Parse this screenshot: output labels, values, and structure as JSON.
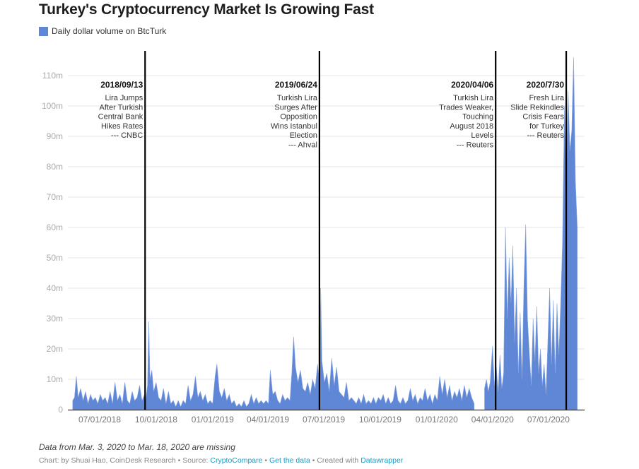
{
  "title": "Turkey's Cryptocurrency Market Is Growing Fast",
  "legend": {
    "label": "Daily dollar volume on BtcTurk",
    "color": "#5f87d6"
  },
  "note": "Data from Mar. 3, 2020 to Mar. 18, 2020 are missing",
  "footer": {
    "prefix": "Chart: by Shuai Hao, CoinDesk Research • Source: ",
    "source_link": "CryptoCompare",
    "sep1": " • ",
    "data_link": "Get the data",
    "sep2": " • Created with ",
    "tool_link": "Datawrapper"
  },
  "chart_data": {
    "type": "area",
    "title": "Turkey's Cryptocurrency Market Is Growing Fast",
    "xlabel": "",
    "ylabel": "",
    "unit": "USD millions",
    "ylim": [
      0,
      110
    ],
    "grid": true,
    "legend_position": "top-left",
    "y_ticks": [
      {
        "value": 0,
        "label": "0"
      },
      {
        "value": 10,
        "label": "10m"
      },
      {
        "value": 20,
        "label": "20m"
      },
      {
        "value": 30,
        "label": "30m"
      },
      {
        "value": 40,
        "label": "40m"
      },
      {
        "value": 50,
        "label": "50m"
      },
      {
        "value": 60,
        "label": "60m"
      },
      {
        "value": 70,
        "label": "70m"
      },
      {
        "value": 80,
        "label": "80m"
      },
      {
        "value": 90,
        "label": "90m"
      },
      {
        "value": 100,
        "label": "100m"
      },
      {
        "value": 110,
        "label": "110m"
      }
    ],
    "x_range": [
      "2018-05-18",
      "2020-08-17"
    ],
    "x_ticks": [
      {
        "date": "2018-07-01",
        "label": "07/01/2018"
      },
      {
        "date": "2018-10-01",
        "label": "10/01/2018"
      },
      {
        "date": "2019-01-01",
        "label": "01/01/2019"
      },
      {
        "date": "2019-04-01",
        "label": "04/01/2019"
      },
      {
        "date": "2019-07-01",
        "label": "07/01/2019"
      },
      {
        "date": "2019-10-01",
        "label": "10/01/2019"
      },
      {
        "date": "2020-01-01",
        "label": "01/01/2020"
      },
      {
        "date": "2020-04-01",
        "label": "04/01/2020"
      },
      {
        "date": "2020-07-01",
        "label": "07/01/2020"
      }
    ],
    "missing_range": [
      "2020-03-03",
      "2020-03-18"
    ],
    "series": [
      {
        "name": "Daily dollar volume on BtcTurk",
        "points": [
          [
            "2018-05-18",
            3
          ],
          [
            "2018-05-21",
            4
          ],
          [
            "2018-05-24",
            11
          ],
          [
            "2018-05-27",
            4
          ],
          [
            "2018-05-31",
            7
          ],
          [
            "2018-06-04",
            3
          ],
          [
            "2018-06-08",
            6
          ],
          [
            "2018-06-12",
            2
          ],
          [
            "2018-06-16",
            5
          ],
          [
            "2018-06-20",
            3
          ],
          [
            "2018-06-24",
            4
          ],
          [
            "2018-06-28",
            2
          ],
          [
            "2018-07-02",
            5
          ],
          [
            "2018-07-06",
            3
          ],
          [
            "2018-07-10",
            4
          ],
          [
            "2018-07-14",
            2
          ],
          [
            "2018-07-18",
            6
          ],
          [
            "2018-07-22",
            2
          ],
          [
            "2018-07-26",
            9
          ],
          [
            "2018-07-30",
            3
          ],
          [
            "2018-08-03",
            5
          ],
          [
            "2018-08-07",
            2
          ],
          [
            "2018-08-11",
            9
          ],
          [
            "2018-08-15",
            3
          ],
          [
            "2018-08-19",
            2
          ],
          [
            "2018-08-23",
            6
          ],
          [
            "2018-08-27",
            3
          ],
          [
            "2018-08-31",
            4
          ],
          [
            "2018-09-04",
            8
          ],
          [
            "2018-09-08",
            3
          ],
          [
            "2018-09-12",
            5
          ],
          [
            "2018-09-14",
            3
          ],
          [
            "2018-09-17",
            8
          ],
          [
            "2018-09-19",
            29
          ],
          [
            "2018-09-21",
            10
          ],
          [
            "2018-09-24",
            13
          ],
          [
            "2018-09-27",
            6
          ],
          [
            "2018-10-01",
            9
          ],
          [
            "2018-10-05",
            4
          ],
          [
            "2018-10-09",
            3
          ],
          [
            "2018-10-13",
            7
          ],
          [
            "2018-10-17",
            2
          ],
          [
            "2018-10-21",
            6
          ],
          [
            "2018-10-25",
            2
          ],
          [
            "2018-10-29",
            3
          ],
          [
            "2018-11-02",
            1
          ],
          [
            "2018-11-06",
            3
          ],
          [
            "2018-11-10",
            1
          ],
          [
            "2018-11-14",
            3
          ],
          [
            "2018-11-18",
            2
          ],
          [
            "2018-11-22",
            8
          ],
          [
            "2018-11-26",
            3
          ],
          [
            "2018-11-30",
            5
          ],
          [
            "2018-12-04",
            11
          ],
          [
            "2018-12-08",
            4
          ],
          [
            "2018-12-12",
            6
          ],
          [
            "2018-12-16",
            3
          ],
          [
            "2018-12-20",
            5
          ],
          [
            "2018-12-24",
            2
          ],
          [
            "2018-12-28",
            3
          ],
          [
            "2019-01-01",
            2
          ],
          [
            "2019-01-05",
            11
          ],
          [
            "2019-01-08",
            15
          ],
          [
            "2019-01-12",
            6
          ],
          [
            "2019-01-16",
            4
          ],
          [
            "2019-01-20",
            7
          ],
          [
            "2019-01-24",
            3
          ],
          [
            "2019-01-28",
            5
          ],
          [
            "2019-02-01",
            2
          ],
          [
            "2019-02-05",
            3
          ],
          [
            "2019-02-09",
            1
          ],
          [
            "2019-02-13",
            2
          ],
          [
            "2019-02-17",
            1
          ],
          [
            "2019-02-21",
            3
          ],
          [
            "2019-02-25",
            1
          ],
          [
            "2019-03-01",
            2
          ],
          [
            "2019-03-05",
            5
          ],
          [
            "2019-03-09",
            2
          ],
          [
            "2019-03-13",
            4
          ],
          [
            "2019-03-17",
            2
          ],
          [
            "2019-03-21",
            3
          ],
          [
            "2019-03-25",
            2
          ],
          [
            "2019-03-29",
            3
          ],
          [
            "2019-04-02",
            2
          ],
          [
            "2019-04-05",
            13
          ],
          [
            "2019-04-09",
            5
          ],
          [
            "2019-04-13",
            6
          ],
          [
            "2019-04-17",
            3
          ],
          [
            "2019-04-21",
            2
          ],
          [
            "2019-04-25",
            5
          ],
          [
            "2019-04-29",
            3
          ],
          [
            "2019-05-03",
            4
          ],
          [
            "2019-05-07",
            3
          ],
          [
            "2019-05-10",
            12
          ],
          [
            "2019-05-13",
            24
          ],
          [
            "2019-05-16",
            14
          ],
          [
            "2019-05-20",
            9
          ],
          [
            "2019-05-24",
            13
          ],
          [
            "2019-05-28",
            7
          ],
          [
            "2019-06-01",
            6
          ],
          [
            "2019-06-05",
            9
          ],
          [
            "2019-06-09",
            5
          ],
          [
            "2019-06-13",
            10
          ],
          [
            "2019-06-17",
            7
          ],
          [
            "2019-06-21",
            15
          ],
          [
            "2019-06-24",
            9
          ],
          [
            "2019-06-26",
            40
          ],
          [
            "2019-06-28",
            16
          ],
          [
            "2019-07-02",
            9
          ],
          [
            "2019-07-06",
            12
          ],
          [
            "2019-07-10",
            6
          ],
          [
            "2019-07-14",
            17
          ],
          [
            "2019-07-18",
            8
          ],
          [
            "2019-07-22",
            14
          ],
          [
            "2019-07-26",
            6
          ],
          [
            "2019-07-30",
            5
          ],
          [
            "2019-08-03",
            4
          ],
          [
            "2019-08-07",
            9
          ],
          [
            "2019-08-11",
            3
          ],
          [
            "2019-08-15",
            4
          ],
          [
            "2019-08-19",
            3
          ],
          [
            "2019-08-23",
            2
          ],
          [
            "2019-08-27",
            4
          ],
          [
            "2019-08-31",
            2
          ],
          [
            "2019-09-04",
            5
          ],
          [
            "2019-09-08",
            2
          ],
          [
            "2019-09-12",
            3
          ],
          [
            "2019-09-16",
            2
          ],
          [
            "2019-09-20",
            4
          ],
          [
            "2019-09-24",
            2
          ],
          [
            "2019-09-28",
            4
          ],
          [
            "2019-10-02",
            3
          ],
          [
            "2019-10-06",
            5
          ],
          [
            "2019-10-10",
            2
          ],
          [
            "2019-10-14",
            4
          ],
          [
            "2019-10-18",
            2
          ],
          [
            "2019-10-22",
            3
          ],
          [
            "2019-10-26",
            8
          ],
          [
            "2019-10-30",
            3
          ],
          [
            "2019-11-03",
            2
          ],
          [
            "2019-11-07",
            4
          ],
          [
            "2019-11-11",
            2
          ],
          [
            "2019-11-15",
            3
          ],
          [
            "2019-11-19",
            7
          ],
          [
            "2019-11-23",
            3
          ],
          [
            "2019-11-27",
            5
          ],
          [
            "2019-12-01",
            2
          ],
          [
            "2019-12-05",
            4
          ],
          [
            "2019-12-09",
            3
          ],
          [
            "2019-12-13",
            7
          ],
          [
            "2019-12-17",
            3
          ],
          [
            "2019-12-21",
            5
          ],
          [
            "2019-12-25",
            2
          ],
          [
            "2019-12-29",
            5
          ],
          [
            "2020-01-02",
            3
          ],
          [
            "2020-01-06",
            11
          ],
          [
            "2020-01-10",
            5
          ],
          [
            "2020-01-14",
            10
          ],
          [
            "2020-01-18",
            4
          ],
          [
            "2020-01-22",
            8
          ],
          [
            "2020-01-26",
            3
          ],
          [
            "2020-01-30",
            6
          ],
          [
            "2020-02-03",
            4
          ],
          [
            "2020-02-07",
            7
          ],
          [
            "2020-02-11",
            3
          ],
          [
            "2020-02-15",
            8
          ],
          [
            "2020-02-19",
            4
          ],
          [
            "2020-02-23",
            7
          ],
          [
            "2020-02-27",
            4
          ],
          [
            "2020-03-02",
            2
          ],
          [
            "2020-03-19",
            7
          ],
          [
            "2020-03-22",
            10
          ],
          [
            "2020-03-25",
            6
          ],
          [
            "2020-03-28",
            9
          ],
          [
            "2020-04-01",
            21
          ],
          [
            "2020-04-04",
            8
          ],
          [
            "2020-04-07",
            14
          ],
          [
            "2020-04-10",
            6
          ],
          [
            "2020-04-13",
            18
          ],
          [
            "2020-04-16",
            7
          ],
          [
            "2020-04-19",
            12
          ],
          [
            "2020-04-22",
            60
          ],
          [
            "2020-04-25",
            30
          ],
          [
            "2020-04-28",
            50
          ],
          [
            "2020-05-01",
            35
          ],
          [
            "2020-05-04",
            54
          ],
          [
            "2020-05-07",
            22
          ],
          [
            "2020-05-10",
            40
          ],
          [
            "2020-05-13",
            12
          ],
          [
            "2020-05-16",
            32
          ],
          [
            "2020-05-19",
            10
          ],
          [
            "2020-05-22",
            40
          ],
          [
            "2020-05-25",
            61
          ],
          [
            "2020-05-28",
            30
          ],
          [
            "2020-05-31",
            18
          ],
          [
            "2020-06-03",
            8
          ],
          [
            "2020-06-06",
            30
          ],
          [
            "2020-06-09",
            16
          ],
          [
            "2020-06-12",
            34
          ],
          [
            "2020-06-15",
            12
          ],
          [
            "2020-06-18",
            20
          ],
          [
            "2020-06-21",
            8
          ],
          [
            "2020-06-24",
            15
          ],
          [
            "2020-06-27",
            5
          ],
          [
            "2020-06-30",
            22
          ],
          [
            "2020-07-03",
            40
          ],
          [
            "2020-07-06",
            15
          ],
          [
            "2020-07-09",
            36
          ],
          [
            "2020-07-12",
            12
          ],
          [
            "2020-07-15",
            35
          ],
          [
            "2020-07-18",
            18
          ],
          [
            "2020-07-21",
            35
          ],
          [
            "2020-07-24",
            55
          ],
          [
            "2020-07-27",
            100
          ],
          [
            "2020-07-30",
            75
          ],
          [
            "2020-08-02",
            105
          ],
          [
            "2020-08-05",
            85
          ],
          [
            "2020-08-08",
            92
          ],
          [
            "2020-08-11",
            116
          ],
          [
            "2020-08-14",
            75
          ],
          [
            "2020-08-17",
            60
          ]
        ]
      }
    ],
    "annotations": [
      {
        "date": "2018-09-13",
        "label": "2018/09/13",
        "lines": [
          "Lira Jumps",
          "After Turkish",
          "Central Bank",
          "Hikes Rates",
          "--- CNBC"
        ]
      },
      {
        "date": "2019-06-24",
        "label": "2019/06/24",
        "lines": [
          "Turkish Lira",
          "Surges After",
          "Opposition",
          "Wins Istanbul",
          "Election",
          "--- Ahval"
        ]
      },
      {
        "date": "2020-04-06",
        "label": "2020/04/06",
        "lines": [
          "Turkish Lira",
          "Trades Weaker,",
          "Touching",
          "August 2018",
          "Levels",
          "--- Reuters"
        ]
      },
      {
        "date": "2020-07-30",
        "label": "2020/7/30",
        "lines": [
          "Fresh Lira",
          "Slide Rekindles",
          "Crisis Fears",
          "for Turkey",
          "--- Reuters"
        ]
      }
    ]
  }
}
